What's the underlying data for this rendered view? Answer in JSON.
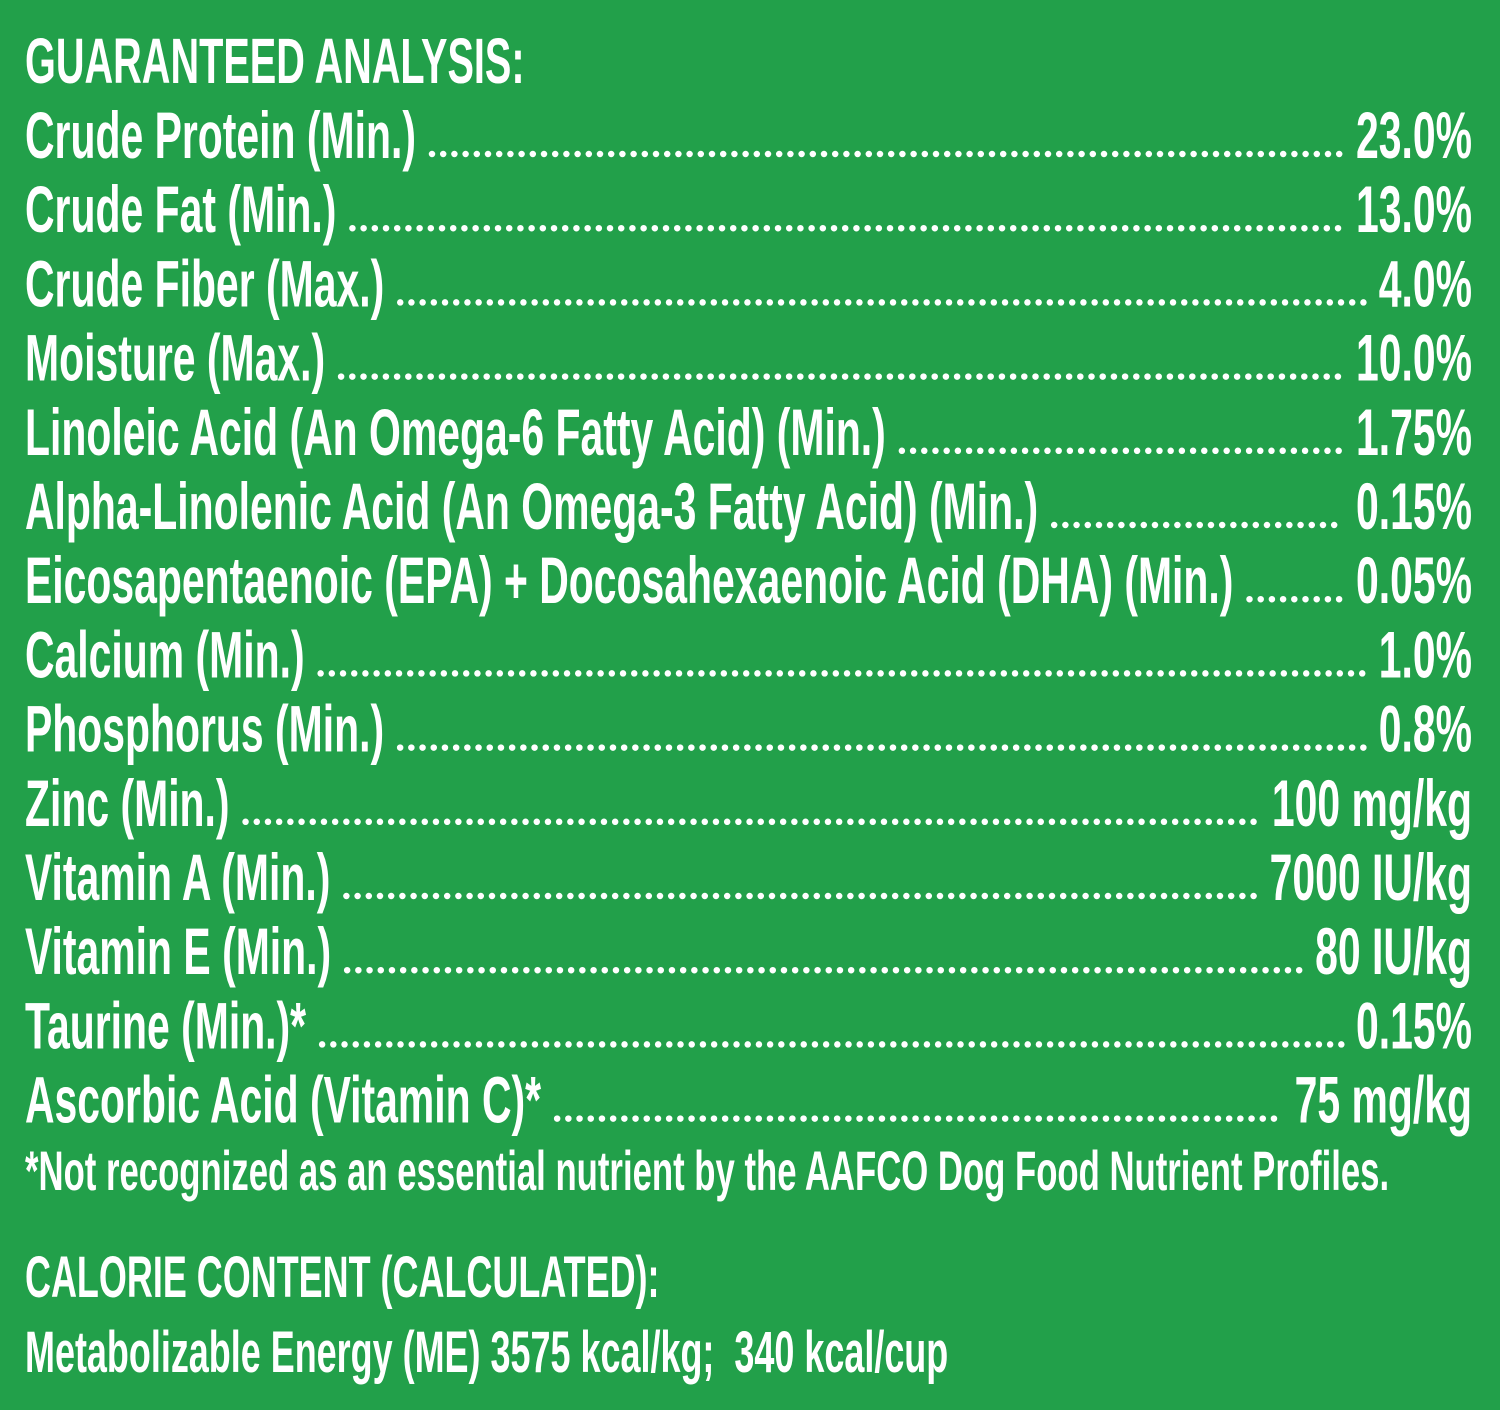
{
  "title": "GUARANTEED ANALYSIS:",
  "rows": [
    {
      "label": "Crude Protein (Min.)",
      "value": "23.0%"
    },
    {
      "label": "Crude Fat (Min.)",
      "value": "13.0%"
    },
    {
      "label": "Crude Fiber (Max.)",
      "value": "4.0%"
    },
    {
      "label": "Moisture (Max.)",
      "value": "10.0%"
    },
    {
      "label": "Linoleic Acid (An Omega-6 Fatty Acid) (Min.)",
      "value": "1.75%"
    },
    {
      "label": "Alpha-Linolenic Acid (An Omega-3 Fatty Acid) (Min.)",
      "value": "0.15%"
    },
    {
      "label": "Eicosapentaenoic (EPA) + Docosahexaenoic Acid (DHA) (Min.)",
      "value": "0.05%"
    },
    {
      "label": "Calcium (Min.)",
      "value": "1.0%"
    },
    {
      "label": "Phosphorus (Min.)",
      "value": "0.8%"
    },
    {
      "label": "Zinc (Min.)",
      "value": "100 mg/kg"
    },
    {
      "label": "Vitamin A (Min.)",
      "value": "7000 IU/kg"
    },
    {
      "label": "Vitamin E (Min.)",
      "value": "80 IU/kg"
    },
    {
      "label": "Taurine (Min.)*",
      "value": "0.15%"
    },
    {
      "label": "Ascorbic Acid (Vitamin C)*",
      "value": "75 mg/kg"
    }
  ],
  "footnote": "*Not recognized as an essential nutrient by the AAFCO Dog Food Nutrient Profiles.",
  "calorie_title": "CALORIE CONTENT (CALCULATED):",
  "calorie_text": "Metabolizable Energy (ME) 3575 kcal/kg;  340 kcal/cup"
}
